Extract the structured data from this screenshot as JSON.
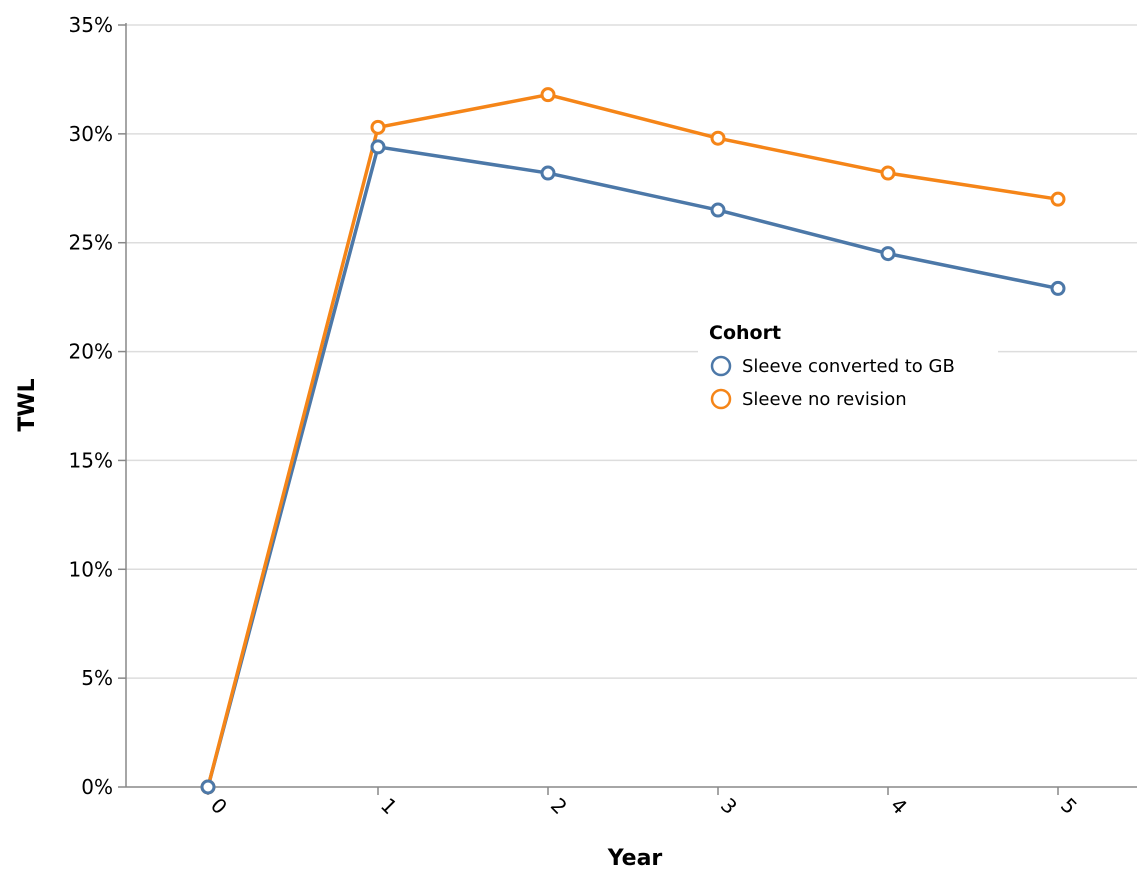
{
  "chart_data": {
    "type": "line",
    "xlabel": "Year",
    "ylabel": "TWL",
    "x": [
      0,
      1,
      2,
      3,
      4,
      5
    ],
    "x_tick_labels": [
      "0",
      "1",
      "2",
      "3",
      "4",
      "5"
    ],
    "y_tick_labels": [
      "0%",
      "5%",
      "10%",
      "15%",
      "20%",
      "25%",
      "30%",
      "35%"
    ],
    "y_ticks": [
      0,
      5,
      10,
      15,
      20,
      25,
      30,
      35
    ],
    "ylim": [
      0,
      35
    ],
    "y_unit": "%",
    "grid": "horizontal",
    "legend": {
      "title": "Cohort",
      "placement": "inside-right"
    },
    "series": [
      {
        "name": "Sleeve converted to GB",
        "color": "#4c78a8",
        "values": [
          0,
          29.4,
          28.2,
          26.5,
          24.5,
          22.9
        ]
      },
      {
        "name": "Sleeve no revision",
        "color": "#f58518",
        "values": [
          0,
          30.3,
          31.8,
          29.8,
          28.2,
          27.0
        ]
      }
    ]
  }
}
